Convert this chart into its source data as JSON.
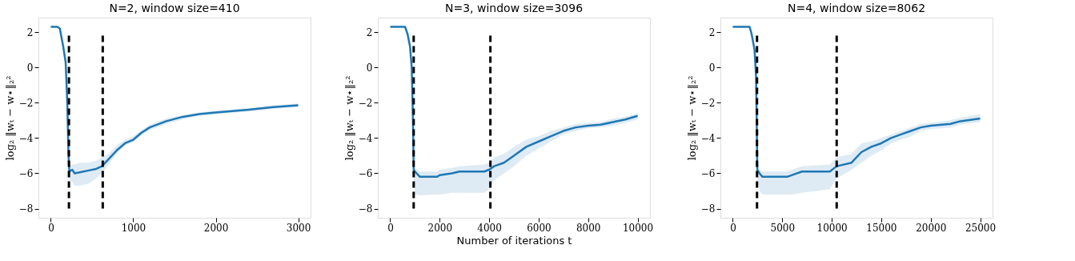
{
  "chart_data": [
    {
      "type": "line",
      "title": "N=2, window size=410",
      "ylabel": "log₂ ‖wₜ − w⋆‖₂²",
      "xlim": [
        -150,
        3150
      ],
      "xticks": [
        0,
        1000,
        2000,
        3000
      ],
      "ylim": [
        -8.52,
        2.82
      ],
      "yticks": [
        -8,
        -6,
        -4,
        -2,
        0,
        2
      ],
      "grid": false,
      "line_style": "solid",
      "marker": "none",
      "series": [
        {
          "color": "#1f77b4",
          "x": [
            0,
            80,
            110,
            150,
            180,
            200,
            215,
            225,
            260,
            290,
            350,
            450,
            550,
            620,
            700,
            800,
            900,
            1000,
            1100,
            1200,
            1400,
            1600,
            1800,
            2000,
            2400,
            2700,
            3000
          ],
          "values": [
            2.3,
            2.3,
            2.2,
            1.2,
            0.3,
            -2,
            -5,
            -5.9,
            -5.8,
            -6.0,
            -5.95,
            -5.85,
            -5.75,
            -5.6,
            -5.2,
            -4.7,
            -4.3,
            -4.1,
            -3.7,
            -3.4,
            -3.05,
            -2.8,
            -2.65,
            -2.55,
            -2.4,
            -2.25,
            -2.15
          ],
          "lower": [
            2.3,
            2.3,
            2.2,
            1.2,
            0.3,
            -2,
            -5,
            -6.4,
            -6.5,
            -6.7,
            -6.7,
            -6.6,
            -6.3,
            -6.0,
            -5.5,
            -4.9,
            -4.4,
            -4.25,
            -3.85,
            -3.55,
            -3.2,
            -2.95,
            -2.75,
            -2.65,
            -2.5,
            -2.35,
            -2.25
          ],
          "upper": [
            2.3,
            2.3,
            2.2,
            1.2,
            0.3,
            -2,
            -5,
            -5.6,
            -5.5,
            -5.5,
            -5.4,
            -5.4,
            -5.3,
            -5.1,
            -4.9,
            -4.4,
            -4.1,
            -3.9,
            -3.55,
            -3.25,
            -2.9,
            -2.7,
            -2.55,
            -2.45,
            -2.3,
            -2.15,
            -2.05
          ]
        }
      ],
      "ref_lines": [
        {
          "axis": "x",
          "value": 220,
          "color": "#000000",
          "line_style": "dashed"
        },
        {
          "axis": "x",
          "value": 630,
          "color": "#000000",
          "line_style": "dashed"
        }
      ]
    },
    {
      "type": "line",
      "title": "N=3, window size=3096",
      "xlabel": "Number of iterations t",
      "ylabel": "log₂ ‖wₜ − w⋆‖₂²",
      "xlim": [
        -500,
        10500
      ],
      "xticks": [
        0,
        2000,
        4000,
        6000,
        8000,
        10000
      ],
      "ylim": [
        -8.52,
        2.82
      ],
      "yticks": [
        -8,
        -6,
        -4,
        -2,
        0,
        2
      ],
      "grid": false,
      "line_style": "solid",
      "marker": "none",
      "series": [
        {
          "color": "#1f77b4",
          "x": [
            0,
            600,
            700,
            800,
            870,
            920,
            950,
            1000,
            1200,
            1900,
            2000,
            2500,
            2800,
            3800,
            4000,
            4200,
            4600,
            5000,
            5500,
            6000,
            6500,
            7000,
            7500,
            8000,
            8500,
            9000,
            9500,
            10000
          ],
          "values": [
            2.3,
            2.3,
            1.9,
            1.2,
            0,
            -3,
            -5.8,
            -5.9,
            -6.2,
            -6.2,
            -6.1,
            -6.0,
            -5.9,
            -5.9,
            -5.8,
            -5.6,
            -5.4,
            -5.0,
            -4.5,
            -4.2,
            -3.9,
            -3.6,
            -3.4,
            -3.3,
            -3.25,
            -3.1,
            -2.95,
            -2.75
          ],
          "lower": [
            2.3,
            2.3,
            1.9,
            1.2,
            0,
            -3,
            -6.3,
            -7.2,
            -7.25,
            -7.2,
            -7.2,
            -7.1,
            -7.1,
            -7.1,
            -6.9,
            -6.4,
            -6.0,
            -5.6,
            -5.0,
            -4.6,
            -4.2,
            -3.8,
            -3.6,
            -3.45,
            -3.4,
            -3.3,
            -3.15,
            -2.95
          ],
          "upper": [
            2.3,
            2.3,
            1.9,
            1.2,
            0,
            -3,
            -5.6,
            -5.7,
            -5.9,
            -5.9,
            -5.8,
            -5.7,
            -5.6,
            -5.5,
            -5.4,
            -5.1,
            -4.9,
            -4.5,
            -4.1,
            -3.9,
            -3.6,
            -3.4,
            -3.2,
            -3.15,
            -3.1,
            -2.9,
            -2.8,
            -2.6
          ]
        }
      ],
      "ref_lines": [
        {
          "axis": "x",
          "value": 950,
          "color": "#000000",
          "line_style": "dashed"
        },
        {
          "axis": "x",
          "value": 4050,
          "color": "#000000",
          "line_style": "dashed"
        }
      ]
    },
    {
      "type": "line",
      "title": "N=4, window size=8062",
      "ylabel": "log₂ ‖wₜ − w⋆‖₂²",
      "xlim": [
        -1250,
        26250
      ],
      "xticks": [
        0,
        5000,
        10000,
        15000,
        20000,
        25000
      ],
      "ylim": [
        -8.52,
        2.82
      ],
      "yticks": [
        -8,
        -6,
        -4,
        -2,
        0,
        2
      ],
      "grid": false,
      "line_style": "solid",
      "marker": "none",
      "series": [
        {
          "color": "#1f77b4",
          "x": [
            0,
            1700,
            1900,
            2200,
            2350,
            2420,
            2480,
            2700,
            3000,
            5500,
            6000,
            7000,
            9800,
            10500,
            12000,
            13000,
            14000,
            15000,
            16000,
            17000,
            18000,
            19000,
            20000,
            22000,
            23000,
            25000
          ],
          "values": [
            2.3,
            2.3,
            1.9,
            1.0,
            -0.5,
            -3,
            -5.8,
            -6.0,
            -6.2,
            -6.2,
            -6.1,
            -5.9,
            -5.9,
            -5.6,
            -5.4,
            -4.8,
            -4.5,
            -4.3,
            -4.0,
            -3.8,
            -3.6,
            -3.4,
            -3.3,
            -3.2,
            -3.05,
            -2.9
          ],
          "lower": [
            2.3,
            2.3,
            1.9,
            1.0,
            -0.5,
            -3,
            -6.3,
            -7.0,
            -7.2,
            -7.2,
            -7.2,
            -7.1,
            -6.9,
            -6.3,
            -5.8,
            -5.4,
            -5.0,
            -4.7,
            -4.3,
            -4.1,
            -3.9,
            -3.6,
            -3.5,
            -3.4,
            -3.25,
            -3.1
          ],
          "upper": [
            2.3,
            2.3,
            1.9,
            1.0,
            -0.5,
            -3,
            -5.6,
            -5.8,
            -5.9,
            -5.9,
            -5.8,
            -5.6,
            -5.5,
            -5.1,
            -4.9,
            -4.3,
            -4.2,
            -4.0,
            -3.8,
            -3.6,
            -3.4,
            -3.2,
            -3.15,
            -3.0,
            -2.85,
            -2.65
          ]
        }
      ],
      "ref_lines": [
        {
          "axis": "x",
          "value": 2450,
          "color": "#000000",
          "line_style": "dashed"
        },
        {
          "axis": "x",
          "value": 10500,
          "color": "#000000",
          "line_style": "dashed"
        }
      ]
    }
  ]
}
